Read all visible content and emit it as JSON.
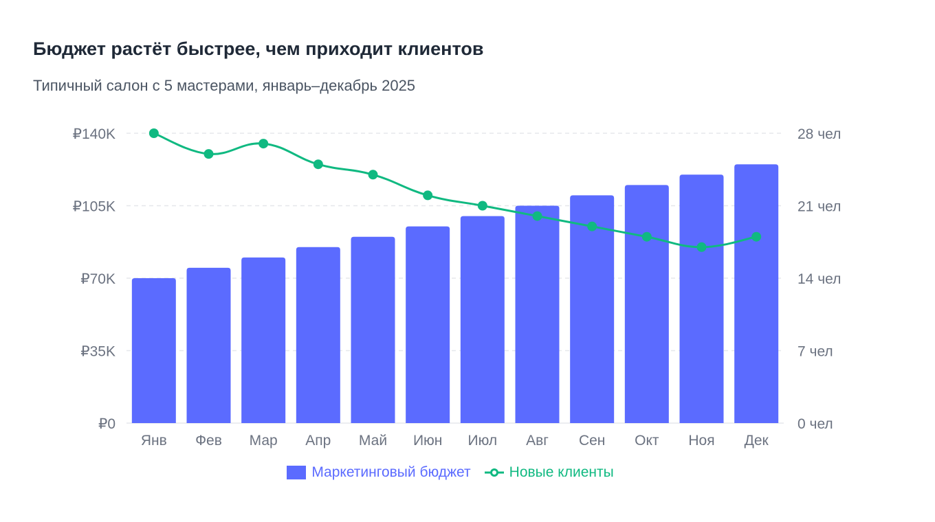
{
  "title": "Бюджет растёт быстрее, чем приходит клиентов",
  "subtitle": "Типичный салон с 5 мастерами, январь–декабрь 2025",
  "colors": {
    "bar": "#5b6bff",
    "line": "#10b981",
    "grid": "#e5e7eb"
  },
  "chart_data": {
    "type": "bar",
    "categories": [
      "Янв",
      "Фев",
      "Мар",
      "Апр",
      "Май",
      "Июн",
      "Июл",
      "Авг",
      "Сен",
      "Окт",
      "Ноя",
      "Дек"
    ],
    "series": [
      {
        "name": "Маркетинговый бюджет",
        "type": "bar",
        "axis": "left",
        "values": [
          70000,
          75000,
          80000,
          85000,
          90000,
          95000,
          100000,
          105000,
          110000,
          115000,
          120000,
          125000
        ]
      },
      {
        "name": "Новые клиенты",
        "type": "line",
        "axis": "right",
        "values": [
          28,
          26,
          27,
          25,
          24,
          22,
          21,
          20,
          19,
          18,
          17,
          18
        ]
      }
    ],
    "y_left": {
      "ylim": [
        0,
        140000
      ],
      "ticks": [
        "₽0",
        "₽35K",
        "₽70K",
        "₽105K",
        "₽140K"
      ]
    },
    "y_right": {
      "ylim": [
        0,
        28
      ],
      "ticks": [
        "0 чел",
        "7 чел",
        "14 чел",
        "21 чел",
        "28 чел"
      ]
    },
    "grid": true,
    "legend": "bottom-center"
  }
}
